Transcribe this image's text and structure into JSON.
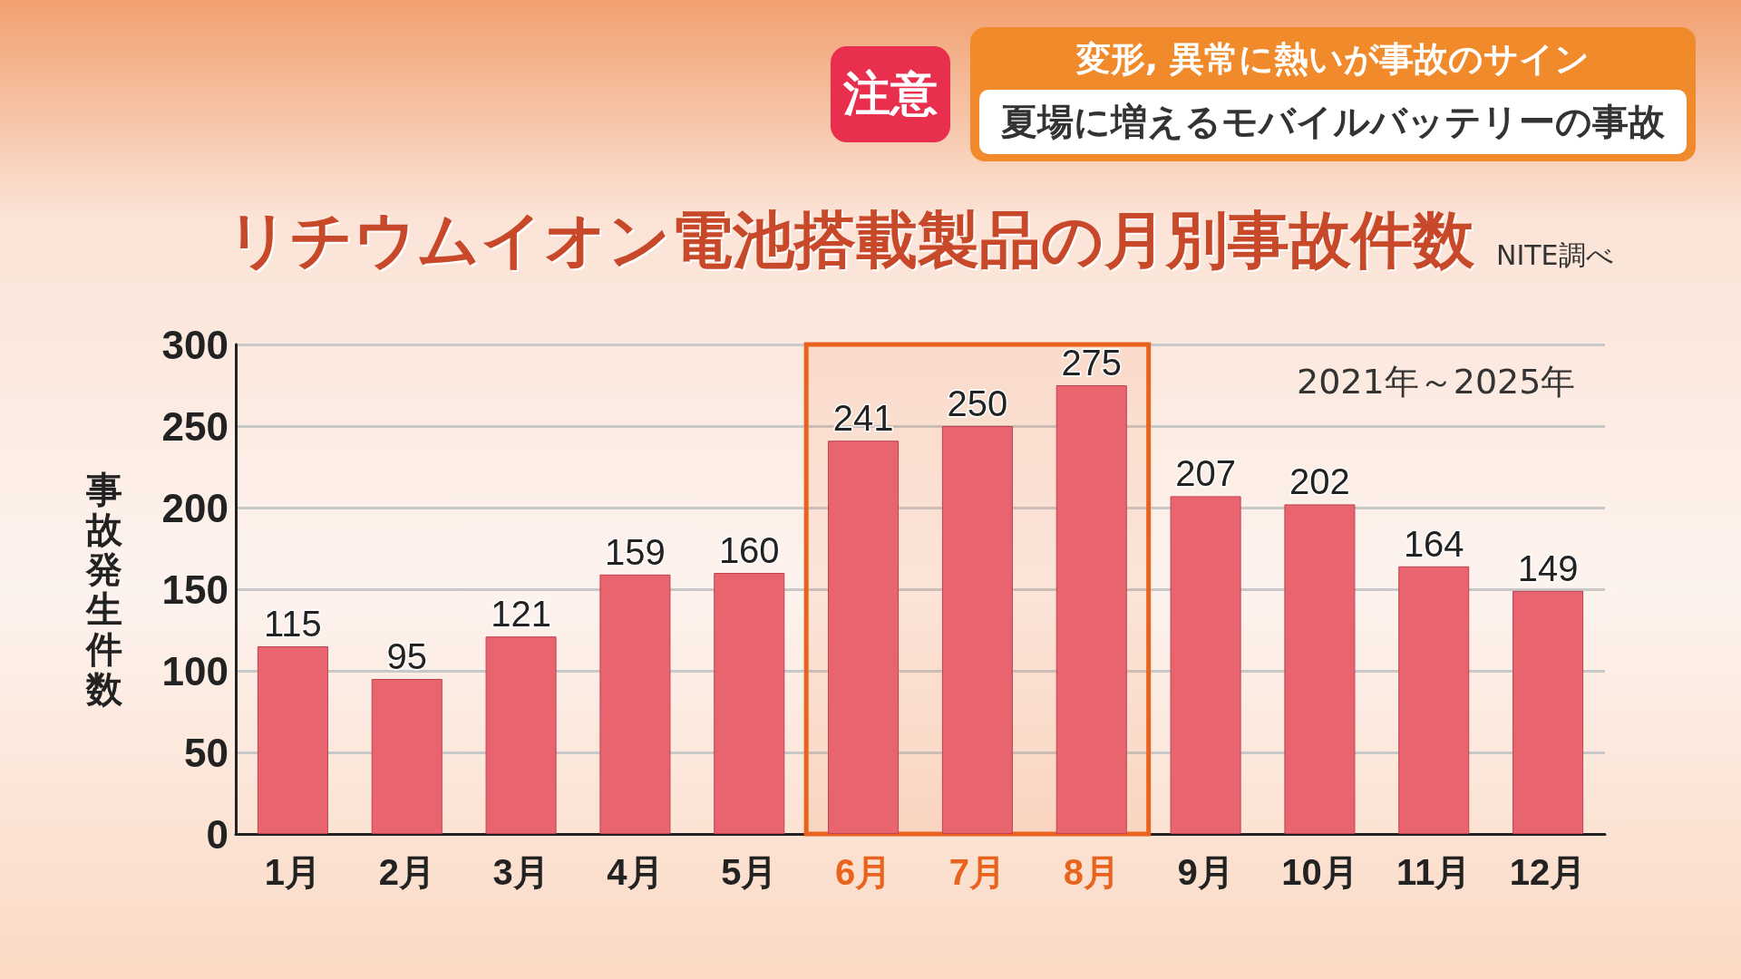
{
  "chart_data": {
    "type": "bar",
    "title": "リチウムイオン電池搭載製品の月別事故件数",
    "subtitle": "夏場に増えるモバイルバッテリーの事故",
    "annotations": [
      "注意",
      "変形, 異常に熱いが事故のサイン",
      "NITE調べ",
      "2021年～2025年"
    ],
    "ylabel": "事故発生件数",
    "categories": [
      "1月",
      "2月",
      "3月",
      "4月",
      "5月",
      "6月",
      "7月",
      "8月",
      "9月",
      "10月",
      "11月",
      "12月"
    ],
    "values": [
      115,
      95,
      121,
      159,
      160,
      241,
      250,
      275,
      207,
      202,
      164,
      149
    ],
    "color": "#e8646e",
    "ylim": [
      0,
      300
    ],
    "yticks": [
      0,
      50,
      100,
      150,
      200,
      250,
      300
    ],
    "grid": "y",
    "data_labels": true,
    "bands": [
      {
        "axis": "x",
        "from": "6月",
        "to": "8月",
        "color": "#e8641e"
      }
    ]
  }
}
